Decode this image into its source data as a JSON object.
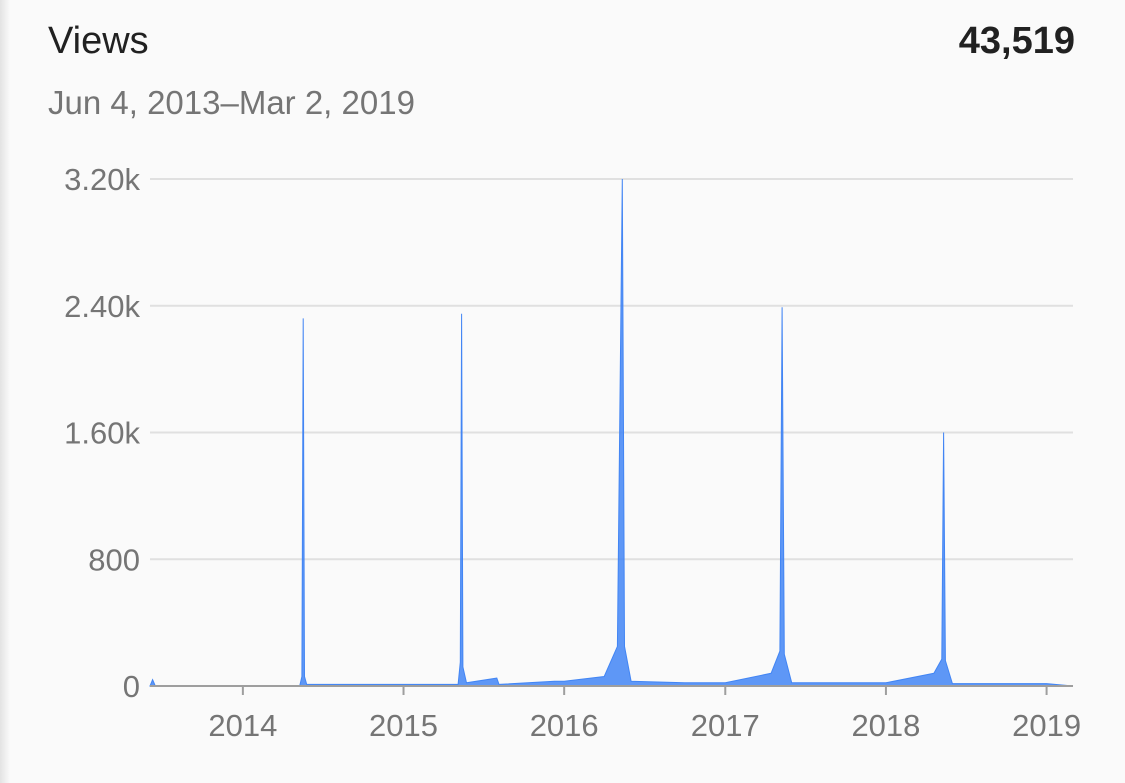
{
  "header": {
    "metric": "Views",
    "total": "43,519",
    "date_range": "Jun 4, 2013–Mar 2, 2019"
  },
  "colors": {
    "series": "#4285f4",
    "grid": "#e0e0e0",
    "axis": "#9e9e9e",
    "text": "#757575"
  },
  "chart_data": {
    "type": "area",
    "title": "Views",
    "xlabel": "",
    "ylabel": "",
    "xlim": [
      "2013-06-04",
      "2019-03-02"
    ],
    "ylim": [
      0,
      3200
    ],
    "y_ticks": [
      {
        "value": 0,
        "label": "0"
      },
      {
        "value": 800,
        "label": "800"
      },
      {
        "value": 1600,
        "label": "1.60k"
      },
      {
        "value": 2400,
        "label": "2.40k"
      },
      {
        "value": 3200,
        "label": "3.20k"
      }
    ],
    "x_ticks": [
      {
        "date": "2014-01-01",
        "label": "2014"
      },
      {
        "date": "2015-01-01",
        "label": "2015"
      },
      {
        "date": "2016-01-01",
        "label": "2016"
      },
      {
        "date": "2017-01-01",
        "label": "2017"
      },
      {
        "date": "2018-01-01",
        "label": "2018"
      },
      {
        "date": "2019-01-01",
        "label": "2019"
      }
    ],
    "grid": true,
    "legend": "none",
    "series": [
      {
        "points": [
          {
            "date": "2013-06-04",
            "value": 0
          },
          {
            "date": "2013-06-10",
            "value": 40
          },
          {
            "date": "2013-06-16",
            "value": 0
          },
          {
            "date": "2014-05-10",
            "value": 0
          },
          {
            "date": "2014-05-15",
            "value": 60
          },
          {
            "date": "2014-05-18",
            "value": 2320
          },
          {
            "date": "2014-05-21",
            "value": 60
          },
          {
            "date": "2014-05-26",
            "value": 10
          },
          {
            "date": "2015-05-05",
            "value": 10
          },
          {
            "date": "2015-05-10",
            "value": 150
          },
          {
            "date": "2015-05-13",
            "value": 2350
          },
          {
            "date": "2015-05-16",
            "value": 120
          },
          {
            "date": "2015-05-24",
            "value": 20
          },
          {
            "date": "2015-08-01",
            "value": 50
          },
          {
            "date": "2015-08-06",
            "value": 10
          },
          {
            "date": "2015-12-10",
            "value": 30
          },
          {
            "date": "2016-01-01",
            "value": 30
          },
          {
            "date": "2016-04-01",
            "value": 60
          },
          {
            "date": "2016-05-01",
            "value": 250
          },
          {
            "date": "2016-05-12",
            "value": 3200
          },
          {
            "date": "2016-05-17",
            "value": 250
          },
          {
            "date": "2016-06-01",
            "value": 30
          },
          {
            "date": "2016-10-01",
            "value": 20
          },
          {
            "date": "2017-01-01",
            "value": 20
          },
          {
            "date": "2017-04-15",
            "value": 80
          },
          {
            "date": "2017-05-05",
            "value": 220
          },
          {
            "date": "2017-05-10",
            "value": 2390
          },
          {
            "date": "2017-05-15",
            "value": 200
          },
          {
            "date": "2017-06-01",
            "value": 20
          },
          {
            "date": "2018-01-01",
            "value": 20
          },
          {
            "date": "2018-04-20",
            "value": 80
          },
          {
            "date": "2018-05-08",
            "value": 170
          },
          {
            "date": "2018-05-12",
            "value": 1600
          },
          {
            "date": "2018-05-16",
            "value": 160
          },
          {
            "date": "2018-06-01",
            "value": 15
          },
          {
            "date": "2019-01-01",
            "value": 15
          },
          {
            "date": "2019-03-02",
            "value": 0
          }
        ]
      }
    ]
  }
}
